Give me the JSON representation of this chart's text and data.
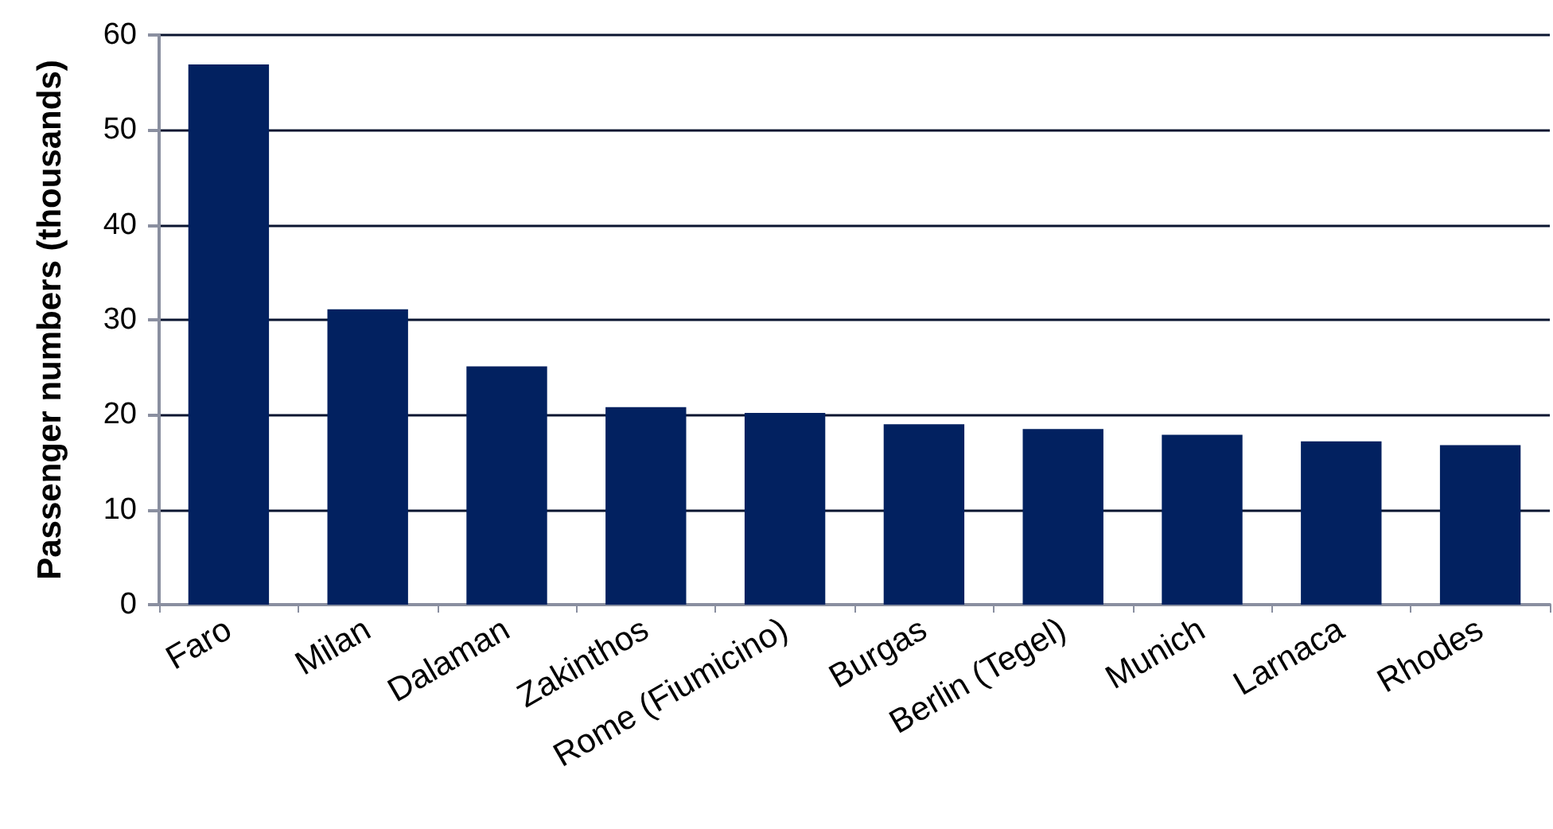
{
  "chart_data": {
    "type": "bar",
    "ylabel": "Passenger numbers (thousands)",
    "categories": [
      "Faro",
      "Milan",
      "Dalaman",
      "Zakinthos",
      "Rome (Fiumicino)",
      "Burgas",
      "Berlin (Tegel)",
      "Munich",
      "Larnaca",
      "Rhodes"
    ],
    "values": [
      56.9,
      31.1,
      25.1,
      20.8,
      20.2,
      19.0,
      18.5,
      17.9,
      17.2,
      16.8
    ],
    "color": "#022160",
    "ylim": [
      0,
      60
    ],
    "yticks": [
      0,
      10,
      20,
      30,
      40,
      50,
      60
    ],
    "grid": "y"
  }
}
